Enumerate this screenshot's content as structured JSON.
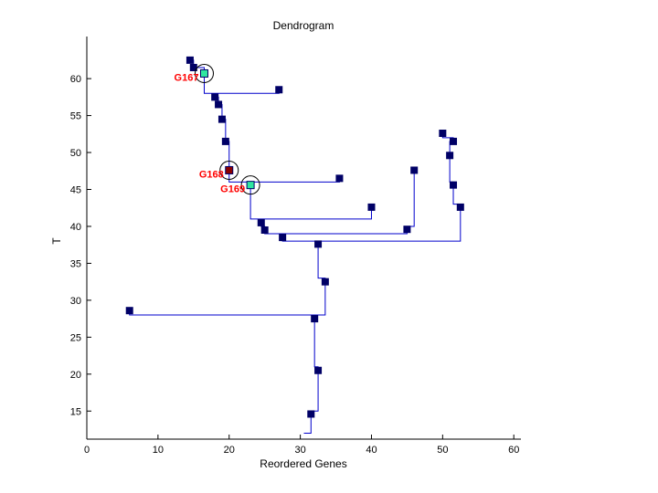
{
  "chart_data": {
    "type": "dendrogram",
    "title": "Dendrogram",
    "xlabel": "Reordered Genes",
    "ylabel": "T",
    "xlim": [
      0,
      61
    ],
    "ylim": [
      11.2,
      65.7
    ],
    "xticks": [
      0,
      10,
      20,
      30,
      40,
      50,
      60
    ],
    "yticks": [
      15,
      20,
      25,
      30,
      35,
      40,
      45,
      50,
      55,
      60
    ],
    "nodes": [
      {
        "id": "n1",
        "x": 14.5,
        "y": 62.5
      },
      {
        "id": "n2",
        "x": 15.0,
        "y": 61.5
      },
      {
        "id": "n3",
        "x": 16.5,
        "y": 60.7,
        "label": "G167"
      },
      {
        "id": "n4",
        "x": 27.0,
        "y": 58.5
      },
      {
        "id": "n5",
        "x": 18.0,
        "y": 57.5
      },
      {
        "id": "n6",
        "x": 18.5,
        "y": 56.5
      },
      {
        "id": "n7",
        "x": 19.0,
        "y": 54.5
      },
      {
        "id": "n8",
        "x": 19.5,
        "y": 51.5
      },
      {
        "id": "n9",
        "x": 20.0,
        "y": 47.6,
        "label": "G168"
      },
      {
        "id": "n10",
        "x": 35.5,
        "y": 46.5
      },
      {
        "id": "n11",
        "x": 23.0,
        "y": 45.6,
        "label": "G169"
      },
      {
        "id": "n12",
        "x": 40.0,
        "y": 42.6
      },
      {
        "id": "n13",
        "x": 24.5,
        "y": 40.5
      },
      {
        "id": "n14",
        "x": 25.0,
        "y": 39.5
      },
      {
        "id": "n15",
        "x": 46.0,
        "y": 47.6
      },
      {
        "id": "n16",
        "x": 45.0,
        "y": 39.6
      },
      {
        "id": "n17",
        "x": 27.5,
        "y": 38.5
      },
      {
        "id": "n18",
        "x": 50.0,
        "y": 52.6
      },
      {
        "id": "n19",
        "x": 51.5,
        "y": 51.5
      },
      {
        "id": "n20",
        "x": 51.0,
        "y": 49.6
      },
      {
        "id": "n21",
        "x": 51.5,
        "y": 45.6
      },
      {
        "id": "n22",
        "x": 52.5,
        "y": 42.6
      },
      {
        "id": "n23",
        "x": 32.5,
        "y": 37.6
      },
      {
        "id": "n24",
        "x": 33.5,
        "y": 32.5
      },
      {
        "id": "n25",
        "x": 6.0,
        "y": 28.6
      },
      {
        "id": "n26",
        "x": 32.0,
        "y": 27.5
      },
      {
        "id": "n27",
        "x": 32.5,
        "y": 20.5
      },
      {
        "id": "n28",
        "x": 31.5,
        "y": 14.6
      }
    ],
    "links": [
      [
        [
          14.5,
          62.5
        ],
        [
          15.0,
          62.5
        ],
        [
          15.0,
          61.5
        ]
      ],
      [
        [
          15.0,
          61.5
        ],
        [
          16.5,
          61.5
        ],
        [
          16.5,
          60.7
        ]
      ],
      [
        [
          16.5,
          60.7
        ],
        [
          16.5,
          58.0
        ],
        [
          27.0,
          58.0
        ],
        [
          27.0,
          58.5
        ]
      ],
      [
        [
          18.0,
          57.5
        ],
        [
          18.5,
          57.5
        ],
        [
          18.5,
          56.5
        ]
      ],
      [
        [
          18.5,
          56.5
        ],
        [
          19.0,
          56.5
        ],
        [
          19.0,
          54.5
        ]
      ],
      [
        [
          19.0,
          54.5
        ],
        [
          19.5,
          54.5
        ],
        [
          19.5,
          51.5
        ]
      ],
      [
        [
          19.5,
          51.5
        ],
        [
          20.0,
          51.5
        ],
        [
          20.0,
          47.6
        ]
      ],
      [
        [
          20.0,
          47.6
        ],
        [
          20.0,
          46.0
        ],
        [
          35.5,
          46.0
        ],
        [
          35.5,
          46.5
        ]
      ],
      [
        [
          23.0,
          45.6
        ],
        [
          23.0,
          41.0
        ],
        [
          40.0,
          41.0
        ],
        [
          40.0,
          42.6
        ]
      ],
      [
        [
          24.5,
          40.5
        ],
        [
          24.5,
          40.0
        ],
        [
          25.0,
          40.0
        ],
        [
          25.0,
          39.5
        ]
      ],
      [
        [
          25.0,
          39.5
        ],
        [
          25.0,
          39.0
        ],
        [
          45.0,
          39.0
        ],
        [
          45.0,
          39.6
        ]
      ],
      [
        [
          45.0,
          39.6
        ],
        [
          45.0,
          40.0
        ],
        [
          46.0,
          40.0
        ],
        [
          46.0,
          47.6
        ]
      ],
      [
        [
          27.5,
          38.5
        ],
        [
          27.5,
          38.0
        ],
        [
          52.5,
          38.0
        ],
        [
          52.5,
          42.6
        ]
      ],
      [
        [
          50.0,
          52.6
        ],
        [
          50.0,
          52.0
        ],
        [
          51.5,
          52.0
        ],
        [
          51.5,
          51.5
        ]
      ],
      [
        [
          51.5,
          51.5
        ],
        [
          51.0,
          51.5
        ],
        [
          51.0,
          49.6
        ]
      ],
      [
        [
          51.0,
          49.6
        ],
        [
          51.0,
          46.0
        ],
        [
          51.5,
          46.0
        ],
        [
          51.5,
          45.6
        ]
      ],
      [
        [
          51.5,
          45.6
        ],
        [
          51.5,
          43.0
        ],
        [
          52.5,
          43.0
        ],
        [
          52.5,
          42.6
        ]
      ],
      [
        [
          32.5,
          37.6
        ],
        [
          32.5,
          33.0
        ],
        [
          33.5,
          33.0
        ],
        [
          33.5,
          32.5
        ]
      ],
      [
        [
          33.5,
          32.5
        ],
        [
          33.5,
          28.0
        ],
        [
          6.0,
          28.0
        ],
        [
          6.0,
          28.6
        ]
      ],
      [
        [
          32.0,
          28.0
        ],
        [
          32.0,
          27.5
        ]
      ],
      [
        [
          32.0,
          27.5
        ],
        [
          32.0,
          21.0
        ],
        [
          32.5,
          21.0
        ],
        [
          32.5,
          20.5
        ]
      ],
      [
        [
          32.5,
          20.5
        ],
        [
          32.5,
          15.0
        ],
        [
          31.5,
          15.0
        ],
        [
          31.5,
          14.6
        ]
      ],
      [
        [
          31.5,
          14.6
        ],
        [
          31.5,
          12.0
        ],
        [
          30.5,
          12.0
        ]
      ]
    ],
    "highlight_colors": {
      "G167": "#2ee6a0",
      "G168": "#8b0000",
      "G169": "#2ee6a0"
    },
    "node_color": "#000066",
    "line_color": "#0000cc",
    "label_color": "#ff0000"
  }
}
